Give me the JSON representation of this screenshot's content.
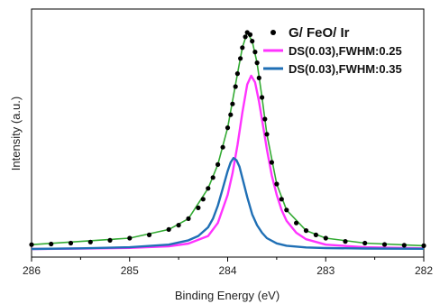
{
  "chart_data": {
    "type": "line",
    "xlabel": "Binding Energy (eV)",
    "ylabel": "Intensity (a.u.)",
    "xlim": [
      286,
      282
    ],
    "x_reversed": true,
    "xticks": [
      286,
      285,
      284,
      283,
      282
    ],
    "ylim": [
      0,
      1.1
    ],
    "y_tick_labels_shown": false,
    "grid": false,
    "legend_position": "top-right",
    "series": [
      {
        "name": "G/ FeO/ Ir",
        "style": "markers",
        "color": "#000000",
        "x": [
          286.0,
          285.8,
          285.6,
          285.4,
          285.2,
          285.0,
          284.8,
          284.6,
          284.5,
          284.4,
          284.3,
          284.25,
          284.2,
          284.15,
          284.1,
          284.05,
          284.0,
          283.97,
          283.95,
          283.92,
          283.9,
          283.87,
          283.85,
          283.82,
          283.8,
          283.77,
          283.75,
          283.72,
          283.7,
          283.68,
          283.65,
          283.62,
          283.6,
          283.55,
          283.5,
          283.45,
          283.4,
          283.3,
          283.2,
          283.1,
          283.0,
          282.8,
          282.6,
          282.4,
          282.2,
          282.0
        ],
        "values": [
          0.02,
          0.023,
          0.027,
          0.032,
          0.04,
          0.05,
          0.065,
          0.09,
          0.11,
          0.14,
          0.19,
          0.23,
          0.28,
          0.33,
          0.39,
          0.47,
          0.56,
          0.62,
          0.67,
          0.75,
          0.81,
          0.88,
          0.93,
          0.98,
          1.0,
          0.99,
          0.96,
          0.91,
          0.86,
          0.79,
          0.7,
          0.6,
          0.53,
          0.4,
          0.3,
          0.23,
          0.18,
          0.12,
          0.085,
          0.065,
          0.05,
          0.035,
          0.027,
          0.021,
          0.017,
          0.015
        ]
      },
      {
        "name": "DS(0.03),FWHM:0.25",
        "style": "line",
        "color": "#ff33ff",
        "x": [
          286.0,
          285.5,
          285.0,
          284.6,
          284.4,
          284.2,
          284.1,
          284.0,
          283.95,
          283.9,
          283.85,
          283.8,
          283.76,
          283.72,
          283.68,
          283.64,
          283.6,
          283.55,
          283.5,
          283.45,
          283.4,
          283.3,
          283.2,
          283.0,
          282.6,
          282.0
        ],
        "values": [
          0.0,
          0.002,
          0.005,
          0.012,
          0.025,
          0.06,
          0.12,
          0.25,
          0.35,
          0.48,
          0.63,
          0.76,
          0.8,
          0.77,
          0.68,
          0.57,
          0.46,
          0.34,
          0.25,
          0.18,
          0.13,
          0.075,
          0.045,
          0.02,
          0.008,
          0.003
        ]
      },
      {
        "name": "DS(0.03),FWHM:0.35",
        "style": "line",
        "color": "#1f6fb5",
        "x": [
          286.0,
          285.5,
          285.0,
          284.6,
          284.4,
          284.3,
          284.2,
          284.15,
          284.1,
          284.05,
          284.0,
          283.97,
          283.94,
          283.91,
          283.88,
          283.84,
          283.8,
          283.75,
          283.7,
          283.65,
          283.6,
          283.5,
          283.4,
          283.2,
          283.0,
          282.6,
          282.0
        ],
        "values": [
          0.0,
          0.003,
          0.008,
          0.02,
          0.04,
          0.06,
          0.1,
          0.14,
          0.2,
          0.28,
          0.36,
          0.4,
          0.42,
          0.41,
          0.38,
          0.31,
          0.24,
          0.16,
          0.11,
          0.075,
          0.05,
          0.026,
          0.015,
          0.007,
          0.004,
          0.002,
          0.001
        ]
      },
      {
        "name": "",
        "style": "line",
        "color": "#33aa33",
        "x": [
          286.0,
          285.0,
          284.6,
          284.4,
          284.2,
          284.1,
          284.0,
          283.9,
          283.85,
          283.8,
          283.75,
          283.7,
          283.65,
          283.6,
          283.5,
          283.4,
          283.2,
          283.0,
          282.6,
          282.0
        ],
        "values": [
          0.02,
          0.05,
          0.09,
          0.14,
          0.28,
          0.39,
          0.56,
          0.81,
          0.93,
          1.0,
          0.96,
          0.86,
          0.7,
          0.53,
          0.3,
          0.18,
          0.085,
          0.05,
          0.027,
          0.015
        ]
      }
    ]
  }
}
